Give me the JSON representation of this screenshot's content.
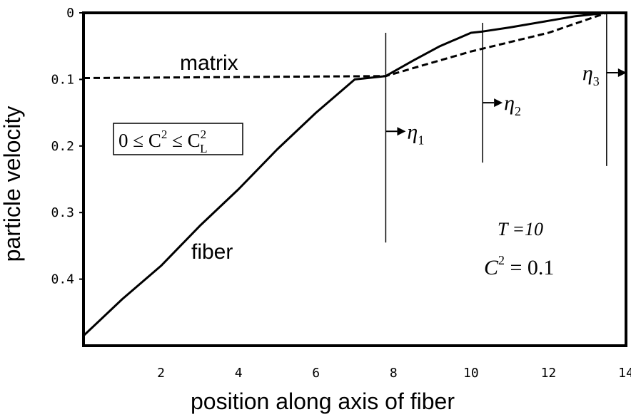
{
  "chart_data": {
    "type": "line",
    "xlabel": "position along axis of fiber",
    "ylabel": "particle velocity",
    "xlim": [
      0,
      14
    ],
    "ylim": [
      0.5,
      0
    ],
    "y_inverted": true,
    "grid": false,
    "x_ticks": [
      "2",
      "4",
      "6",
      "8",
      "10",
      "12",
      "14"
    ],
    "x_tick_values": [
      2,
      4,
      6,
      8,
      10,
      12,
      14
    ],
    "y_ticks": [
      "0",
      "0.1",
      "0.2",
      "0.3",
      "0.4"
    ],
    "y_tick_values": [
      0,
      0.1,
      0.2,
      0.3,
      0.4
    ],
    "series": [
      {
        "name": "fiber",
        "style": "solid",
        "color": "#000000",
        "x": [
          0,
          1,
          2,
          3,
          4,
          5,
          6,
          7,
          7.8,
          8.5,
          9.2,
          10,
          10.3,
          11,
          12,
          12.7,
          13.5
        ],
        "y": [
          0.485,
          0.43,
          0.38,
          0.32,
          0.265,
          0.205,
          0.15,
          0.1,
          0.095,
          0.072,
          0.05,
          0.03,
          0.028,
          0.022,
          0.012,
          0.005,
          0
        ]
      },
      {
        "name": "matrix",
        "style": "dashed",
        "color": "#000000",
        "x": [
          0,
          7.8,
          10,
          12,
          13.5
        ],
        "y": [
          0.098,
          0.095,
          0.058,
          0.03,
          0
        ]
      }
    ],
    "fronts": [
      {
        "label": "η",
        "sub": "1",
        "x": 7.8,
        "y_top": 0.03,
        "y_bottom": 0.345,
        "arrow_y": 0.178
      },
      {
        "label": "η",
        "sub": "2",
        "x": 10.3,
        "y_top": 0.015,
        "y_bottom": 0.225,
        "arrow_y": 0.135
      },
      {
        "label": "η",
        "sub": "3",
        "x": 13.5,
        "y_top": 0,
        "y_bottom": 0.23,
        "arrow_y": 0.09
      }
    ],
    "annotations": {
      "matrix_label": "matrix",
      "fiber_label": "fiber",
      "condition": {
        "lhs": "0 ≤ C",
        "mid": " ≤ C",
        "sup1": "2",
        "sup2": "2",
        "sub": "L"
      },
      "params": {
        "T": "T =10",
        "C_base": "C",
        "C_sup": "2",
        "C_rest": " = 0.1"
      }
    }
  }
}
